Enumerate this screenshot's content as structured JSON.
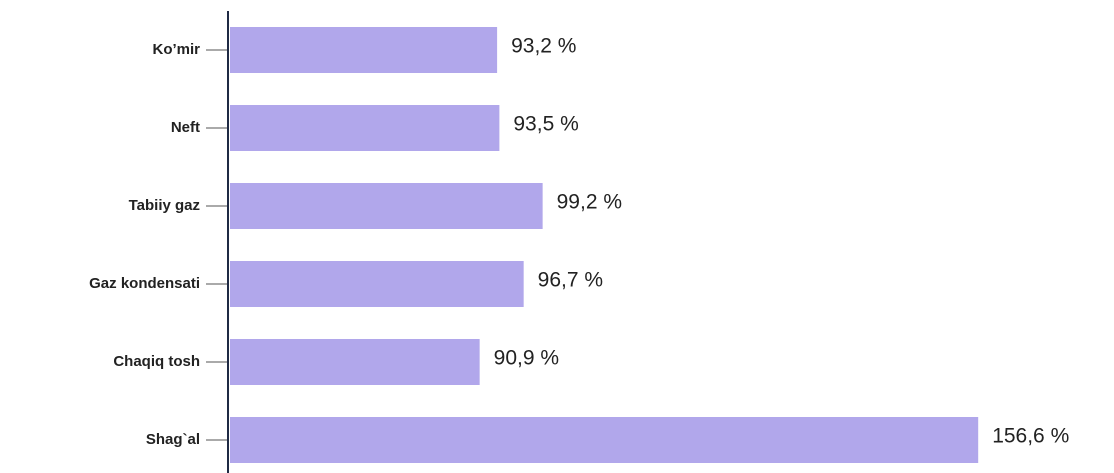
{
  "chart_data": {
    "type": "bar",
    "orientation": "horizontal",
    "categories": [
      "Ko’mir",
      "Neft",
      "Tabiiy gaz",
      "Gaz kondensati",
      "Chaqiq tosh",
      "Shag`al"
    ],
    "values": [
      93.2,
      93.5,
      99.2,
      96.7,
      90.9,
      156.6
    ],
    "value_labels": [
      "93,2 %",
      "93,5 %",
      "99,2 %",
      "96,7 %",
      "90,9 %",
      "156,6 %"
    ],
    "color": "#b1a7eb",
    "xlim": [
      58,
      160
    ]
  }
}
